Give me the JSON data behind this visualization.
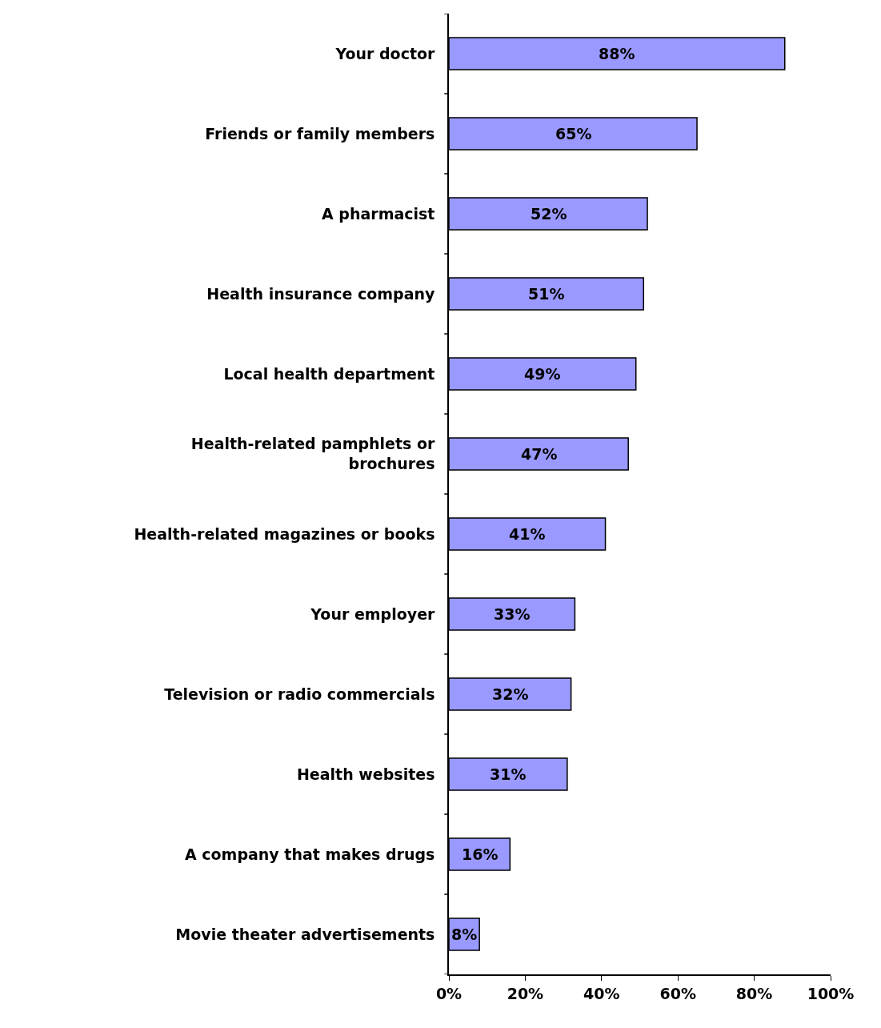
{
  "chart_data": {
    "type": "bar",
    "orientation": "horizontal",
    "categories": [
      "Your doctor",
      "Friends or family members",
      "A pharmacist",
      "Health insurance company",
      "Local health department",
      "Health-related pamphlets or brochures",
      "Health-related magazines or books",
      "Your employer",
      "Television or radio commercials",
      "Health websites",
      "A company that makes drugs",
      "Movie theater advertisements"
    ],
    "values": [
      88,
      65,
      52,
      51,
      49,
      47,
      41,
      33,
      32,
      31,
      16,
      8
    ],
    "value_labels": [
      "88%",
      "65%",
      "52%",
      "51%",
      "49%",
      "47%",
      "41%",
      "33%",
      "32%",
      "31%",
      "16%",
      "8%"
    ],
    "color": "#9999ff",
    "xlim": [
      0,
      100
    ],
    "xticks": [
      {
        "value": 0,
        "label": "0%"
      },
      {
        "value": 20,
        "label": "20%"
      },
      {
        "value": 40,
        "label": "40%"
      },
      {
        "value": 60,
        "label": "60%"
      },
      {
        "value": 80,
        "label": "80%"
      },
      {
        "value": 100,
        "label": "100%"
      }
    ],
    "legend": false
  }
}
